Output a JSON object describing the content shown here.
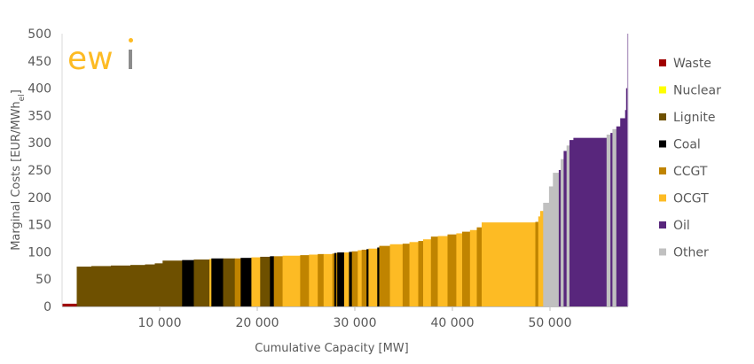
{
  "chart_data": {
    "type": "bar",
    "subtype": "merit-order step chart",
    "logo_text": "ewi",
    "xlabel": "Cumulative Capacity [MW]",
    "ylabel_main": "Marginal Costs [EUR/MWh",
    "ylabel_sub": "el",
    "ylabel_end": "]",
    "xlim": [
      0,
      58000
    ],
    "ylim": [
      0,
      500
    ],
    "x_ticks": [
      10000,
      20000,
      30000,
      40000,
      50000
    ],
    "x_tick_labels": [
      "10 000",
      "20 000",
      "30 000",
      "40 000",
      "50 000"
    ],
    "y_ticks": [
      0,
      50,
      100,
      150,
      200,
      250,
      300,
      350,
      400,
      450,
      500
    ],
    "y_tick_labels": [
      "0",
      "50",
      "100",
      "150",
      "200",
      "250",
      "300",
      "350",
      "400",
      "450",
      "500"
    ],
    "legend_position": "right",
    "legend": [
      {
        "key": "waste",
        "label": "Waste",
        "color": "#a00000"
      },
      {
        "key": "nuclear",
        "label": "Nuclear",
        "color": "#ffff00"
      },
      {
        "key": "lignite",
        "label": "Lignite",
        "color": "#6e5000"
      },
      {
        "key": "coal",
        "label": "Coal",
        "color": "#000000"
      },
      {
        "key": "ccgt",
        "label": "CCGT",
        "color": "#c08400"
      },
      {
        "key": "ocgt",
        "label": "OCGT",
        "color": "#fdbb24"
      },
      {
        "key": "oil",
        "label": "Oil",
        "color": "#58267c"
      },
      {
        "key": "other",
        "label": "Other",
        "color": "#c0c0c0"
      }
    ],
    "blocks_fields": [
      "start_mw",
      "end_mw",
      "price_eur_mwh",
      "technology"
    ],
    "blocks": [
      [
        0,
        1500,
        5,
        "waste"
      ],
      [
        1500,
        3000,
        73,
        "lignite"
      ],
      [
        3000,
        5000,
        74,
        "lignite"
      ],
      [
        5000,
        7000,
        75,
        "lignite"
      ],
      [
        7000,
        8500,
        76,
        "lignite"
      ],
      [
        8500,
        9500,
        77,
        "lignite"
      ],
      [
        9500,
        10300,
        79,
        "lignite"
      ],
      [
        10300,
        12300,
        84,
        "lignite"
      ],
      [
        12300,
        13500,
        85,
        "coal"
      ],
      [
        13500,
        15100,
        86,
        "lignite"
      ],
      [
        15100,
        15300,
        87,
        "ocgt"
      ],
      [
        15300,
        16500,
        88,
        "coal"
      ],
      [
        16500,
        17700,
        88,
        "lignite"
      ],
      [
        17700,
        18300,
        88,
        "ccgt"
      ],
      [
        18300,
        19400,
        89,
        "coal"
      ],
      [
        19400,
        20300,
        90,
        "ocgt"
      ],
      [
        20300,
        21300,
        91,
        "lignite"
      ],
      [
        21300,
        21700,
        92,
        "coal"
      ],
      [
        21700,
        22600,
        92,
        "ccgt"
      ],
      [
        22600,
        24400,
        93,
        "ocgt"
      ],
      [
        24400,
        25300,
        94,
        "ccgt"
      ],
      [
        25300,
        26200,
        95,
        "ocgt"
      ],
      [
        26200,
        26800,
        96,
        "ccgt"
      ],
      [
        26800,
        27700,
        96,
        "ocgt"
      ],
      [
        27700,
        27900,
        97,
        "ccgt"
      ],
      [
        27900,
        28100,
        98,
        "coal"
      ],
      [
        28100,
        28200,
        98,
        "ccgt"
      ],
      [
        28200,
        28900,
        99,
        "coal"
      ],
      [
        28900,
        29400,
        99,
        "ocgt"
      ],
      [
        29400,
        29700,
        100,
        "coal"
      ],
      [
        29700,
        30300,
        101,
        "ccgt"
      ],
      [
        30300,
        30700,
        103,
        "ocgt"
      ],
      [
        30700,
        31200,
        104,
        "ccgt"
      ],
      [
        31200,
        31400,
        105,
        "coal"
      ],
      [
        31400,
        32300,
        106,
        "ocgt"
      ],
      [
        32300,
        32500,
        108,
        "coal"
      ],
      [
        32500,
        33600,
        111,
        "ccgt"
      ],
      [
        33600,
        34900,
        114,
        "ocgt"
      ],
      [
        34900,
        35600,
        115,
        "ccgt"
      ],
      [
        35600,
        36500,
        118,
        "ocgt"
      ],
      [
        36500,
        37000,
        120,
        "ccgt"
      ],
      [
        37000,
        37800,
        123,
        "ocgt"
      ],
      [
        37800,
        38500,
        128,
        "ccgt"
      ],
      [
        38500,
        39500,
        129,
        "ocgt"
      ],
      [
        39500,
        40400,
        132,
        "ccgt"
      ],
      [
        40400,
        41000,
        134,
        "ocgt"
      ],
      [
        41000,
        41800,
        137,
        "ccgt"
      ],
      [
        41800,
        42500,
        140,
        "ocgt"
      ],
      [
        42500,
        43000,
        145,
        "ccgt"
      ],
      [
        43000,
        48500,
        154,
        "ocgt"
      ],
      [
        48500,
        48800,
        155,
        "ccgt"
      ],
      [
        48800,
        49000,
        165,
        "ocgt"
      ],
      [
        49000,
        49300,
        175,
        "ocgt"
      ],
      [
        49300,
        49900,
        190,
        "other"
      ],
      [
        49900,
        50300,
        220,
        "other"
      ],
      [
        50300,
        50900,
        245,
        "other"
      ],
      [
        50900,
        51100,
        250,
        "oil"
      ],
      [
        51100,
        51400,
        270,
        "other"
      ],
      [
        51400,
        51700,
        285,
        "oil"
      ],
      [
        51700,
        52000,
        295,
        "other"
      ],
      [
        52000,
        52400,
        305,
        "oil"
      ],
      [
        52400,
        55800,
        309,
        "oil"
      ],
      [
        55800,
        56200,
        315,
        "other"
      ],
      [
        56200,
        56400,
        318,
        "oil"
      ],
      [
        56400,
        56800,
        325,
        "other"
      ],
      [
        56800,
        57200,
        330,
        "oil"
      ],
      [
        57200,
        57700,
        345,
        "oil"
      ],
      [
        57700,
        57800,
        360,
        "oil"
      ],
      [
        57800,
        57900,
        400,
        "oil"
      ],
      [
        57900,
        58000,
        500,
        "oil"
      ]
    ]
  }
}
